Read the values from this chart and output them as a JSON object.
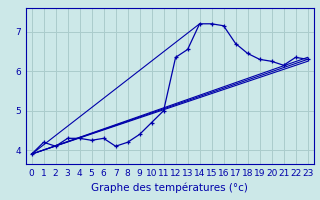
{
  "title": "Graphe des températures (°c)",
  "bg_color": "#cce8e8",
  "grid_color": "#aacccc",
  "line_color": "#0000aa",
  "x_hours": [
    0,
    1,
    2,
    3,
    4,
    5,
    6,
    7,
    8,
    9,
    10,
    11,
    12,
    13,
    14,
    15,
    16,
    17,
    18,
    19,
    20,
    21,
    22,
    23
  ],
  "temp_values": [
    3.9,
    4.2,
    4.1,
    4.3,
    4.3,
    4.25,
    4.3,
    4.1,
    4.2,
    4.4,
    4.7,
    5.0,
    6.35,
    6.55,
    7.2,
    7.2,
    7.15,
    6.7,
    6.45,
    6.3,
    6.25,
    6.15,
    6.35,
    6.3
  ],
  "ylim": [
    3.65,
    7.6
  ],
  "xlim": [
    -0.5,
    23.5
  ],
  "yticks": [
    4,
    5,
    6,
    7
  ],
  "xticks": [
    0,
    1,
    2,
    3,
    4,
    5,
    6,
    7,
    8,
    9,
    10,
    11,
    12,
    13,
    14,
    15,
    16,
    17,
    18,
    19,
    20,
    21,
    22,
    23
  ],
  "trend_lines": [
    {
      "x": [
        0,
        23
      ],
      "y": [
        3.9,
        6.3
      ]
    },
    {
      "x": [
        0,
        23
      ],
      "y": [
        3.9,
        6.25
      ]
    },
    {
      "x": [
        0,
        23
      ],
      "y": [
        3.9,
        6.35
      ]
    },
    {
      "x": [
        0,
        14
      ],
      "y": [
        3.9,
        7.2
      ]
    }
  ],
  "font_color": "#0000aa",
  "tick_fontsize": 6.5,
  "label_fontsize": 7.5
}
